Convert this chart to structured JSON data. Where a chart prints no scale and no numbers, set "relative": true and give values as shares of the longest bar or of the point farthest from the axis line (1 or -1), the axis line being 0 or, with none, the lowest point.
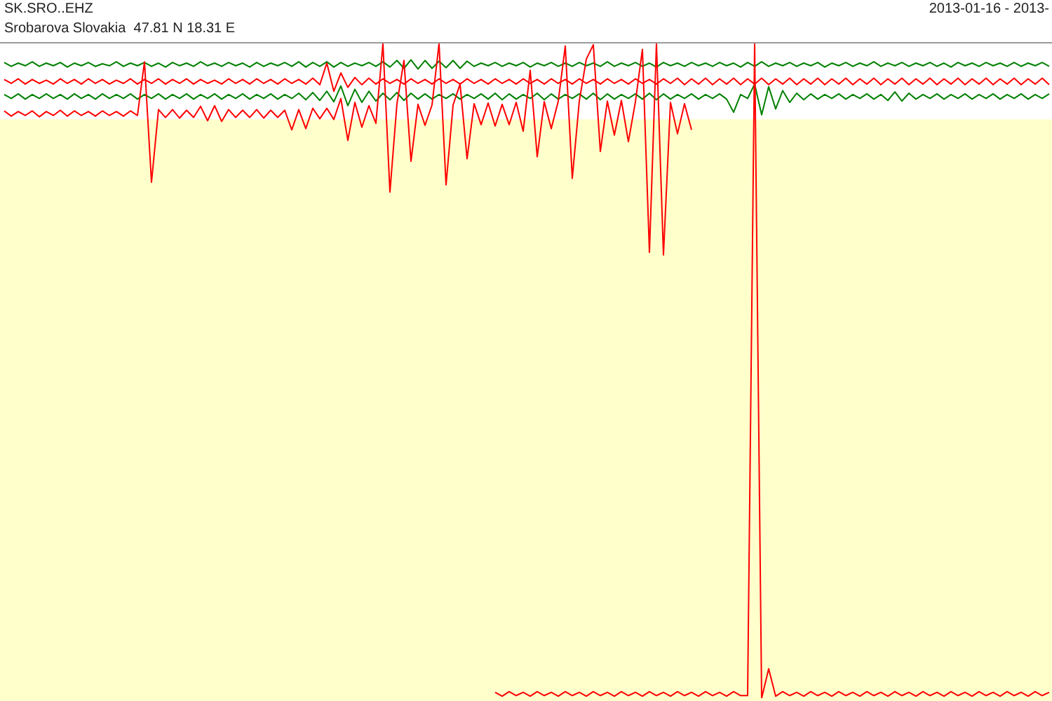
{
  "chart_data": {
    "type": "line",
    "title": "SK.SRO..EHZ",
    "subtitle": "Srobarova Slovakia  47.81 N 18.31 E",
    "annotations": [
      "2013-01-16 - 2013-"
    ],
    "relative": true,
    "legend": false,
    "grid": false,
    "tick_labels": false,
    "marker": "none",
    "line_style": "solid",
    "categories": [
      null,
      null,
      null,
      null,
      null,
      null,
      null,
      null,
      null,
      null,
      null,
      null,
      null,
      null,
      null,
      null,
      null,
      null,
      null,
      null,
      null,
      null,
      null,
      null,
      null,
      null,
      null,
      null,
      null,
      null,
      null,
      null,
      null,
      null,
      null,
      null,
      null,
      null,
      null,
      null,
      null,
      null,
      null,
      null,
      null,
      null,
      null,
      null,
      null,
      null,
      null,
      null,
      null,
      null,
      null,
      null,
      null,
      null,
      null,
      null,
      null,
      null,
      null,
      null,
      null,
      null,
      null,
      null,
      null,
      null,
      null,
      null,
      null,
      null,
      null,
      null,
      null,
      null,
      null,
      null,
      null,
      null,
      null,
      null,
      null,
      null,
      null,
      null,
      null,
      null,
      null,
      null,
      null,
      null,
      null,
      null,
      null,
      null,
      null,
      null,
      null,
      null,
      null,
      null,
      null,
      null,
      null,
      null,
      null,
      null,
      null,
      null,
      null,
      null,
      null,
      null,
      null,
      null,
      null,
      null,
      null,
      null,
      null,
      null,
      null,
      null,
      null,
      null,
      null,
      null,
      null,
      null,
      null,
      null,
      null,
      null,
      null,
      null,
      null,
      null,
      null,
      null,
      null,
      null,
      null,
      null,
      null,
      null,
      null,
      null
    ],
    "series": [
      {
        "color": "#008000",
        "values": [
          0.971,
          0.965,
          0.97,
          0.966,
          0.972,
          0.965,
          0.97,
          0.966,
          0.971,
          0.964,
          0.97,
          0.966,
          0.971,
          0.965,
          0.969,
          0.966,
          0.972,
          0.965,
          0.97,
          0.966,
          0.971,
          0.965,
          0.97,
          0.964,
          0.971,
          0.966,
          0.97,
          0.965,
          0.972,
          0.966,
          0.97,
          0.965,
          0.971,
          0.966,
          0.97,
          0.964,
          0.971,
          0.965,
          0.97,
          0.966,
          0.971,
          0.965,
          0.972,
          0.964,
          0.971,
          0.965,
          0.972,
          0.964,
          0.971,
          0.965,
          0.97,
          0.966,
          0.971,
          0.965,
          0.972,
          0.964,
          0.974,
          0.962,
          0.975,
          0.961,
          0.974,
          0.962,
          0.973,
          0.963,
          0.974,
          0.962,
          0.973,
          0.965,
          0.97,
          0.966,
          0.971,
          0.965,
          0.97,
          0.966,
          0.971,
          0.964,
          0.97,
          0.966,
          0.971,
          0.965,
          0.97,
          0.965,
          0.971,
          0.966,
          0.97,
          0.965,
          0.972,
          0.965,
          0.97,
          0.966,
          0.971,
          0.965,
          0.97,
          0.964,
          0.971,
          0.966,
          0.97,
          0.965,
          0.971,
          0.966,
          0.97,
          0.965,
          0.971,
          0.966,
          0.97,
          0.964,
          0.971,
          0.965,
          0.972,
          0.965,
          0.97,
          0.966,
          0.971,
          0.965,
          0.97,
          0.966,
          0.971,
          0.964,
          0.97,
          0.966,
          0.971,
          0.965,
          0.97,
          0.966,
          0.972,
          0.965,
          0.97,
          0.966,
          0.971,
          0.965,
          0.97,
          0.966,
          0.971,
          0.965,
          0.97,
          0.964,
          0.971,
          0.966,
          0.97,
          0.965,
          0.971,
          0.966,
          0.97,
          0.965,
          0.971,
          0.965,
          0.97,
          0.966,
          0.971,
          0.965
        ]
      },
      {
        "color": "#ff0000",
        "values": [
          0.945,
          0.939,
          0.946,
          0.938,
          0.945,
          0.939,
          0.944,
          0.938,
          0.946,
          0.939,
          0.945,
          0.938,
          0.946,
          0.939,
          0.945,
          0.938,
          0.944,
          0.939,
          0.946,
          0.938,
          0.945,
          0.939,
          0.946,
          0.938,
          0.945,
          0.939,
          0.946,
          0.938,
          0.945,
          0.939,
          0.944,
          0.938,
          0.946,
          0.939,
          0.945,
          0.938,
          0.946,
          0.939,
          0.945,
          0.938,
          0.946,
          0.939,
          0.945,
          0.938,
          0.947,
          0.937,
          0.97,
          0.927,
          0.955,
          0.933,
          0.948,
          0.937,
          0.947,
          0.938,
          0.946,
          0.939,
          0.945,
          0.938,
          0.946,
          0.939,
          0.945,
          0.938,
          0.946,
          0.939,
          0.945,
          0.938,
          0.946,
          0.939,
          0.945,
          0.938,
          0.946,
          0.939,
          0.945,
          0.938,
          0.946,
          0.939,
          0.945,
          0.938,
          0.946,
          0.939,
          0.945,
          0.938,
          0.946,
          0.939,
          0.945,
          0.938,
          0.946,
          0.939,
          0.945,
          0.938,
          0.946,
          0.939,
          0.945,
          0.938,
          0.946,
          0.939,
          0.947,
          0.937,
          0.946,
          0.938,
          0.947,
          0.937,
          0.946,
          0.938,
          0.947,
          0.937,
          0.946,
          0.938,
          0.947,
          0.937,
          0.946,
          0.938,
          0.947,
          0.937,
          0.946,
          0.938,
          0.947,
          0.937,
          0.946,
          0.938,
          0.947,
          0.937,
          0.946,
          0.938,
          0.947,
          0.937,
          0.946,
          0.938,
          0.947,
          0.937,
          0.946,
          0.938,
          0.947,
          0.937,
          0.946,
          0.938,
          0.947,
          0.937,
          0.946,
          0.938,
          0.947,
          0.937,
          0.946,
          0.938,
          0.947,
          0.937,
          0.946,
          0.938,
          0.947,
          0.937
        ]
      },
      {
        "color": "#008000",
        "values": [
          0.922,
          0.916,
          0.923,
          0.915,
          0.922,
          0.916,
          0.923,
          0.916,
          0.922,
          0.915,
          0.923,
          0.916,
          0.922,
          0.915,
          0.923,
          0.916,
          0.922,
          0.916,
          0.923,
          0.915,
          0.922,
          0.916,
          0.923,
          0.915,
          0.922,
          0.916,
          0.923,
          0.915,
          0.922,
          0.916,
          0.923,
          0.915,
          0.922,
          0.916,
          0.923,
          0.915,
          0.922,
          0.916,
          0.923,
          0.915,
          0.922,
          0.916,
          0.924,
          0.914,
          0.925,
          0.913,
          0.927,
          0.911,
          0.935,
          0.905,
          0.93,
          0.91,
          0.927,
          0.912,
          0.924,
          0.914,
          0.925,
          0.913,
          0.924,
          0.915,
          0.923,
          0.915,
          0.922,
          0.916,
          0.923,
          0.915,
          0.922,
          0.916,
          0.923,
          0.915,
          0.924,
          0.914,
          0.923,
          0.915,
          0.922,
          0.916,
          0.924,
          0.914,
          0.923,
          0.915,
          0.922,
          0.916,
          0.923,
          0.915,
          0.924,
          0.914,
          0.923,
          0.915,
          0.922,
          0.916,
          0.923,
          0.915,
          0.924,
          0.914,
          0.923,
          0.915,
          0.922,
          0.916,
          0.923,
          0.915,
          0.922,
          0.916,
          0.923,
          0.915,
          0.895,
          0.922,
          0.916,
          0.938,
          0.891,
          0.934,
          0.9,
          0.928,
          0.91,
          0.924,
          0.914,
          0.923,
          0.915,
          0.922,
          0.916,
          0.923,
          0.915,
          0.922,
          0.916,
          0.923,
          0.915,
          0.922,
          0.913,
          0.926,
          0.912,
          0.924,
          0.915,
          0.922,
          0.916,
          0.923,
          0.915,
          0.922,
          0.916,
          0.923,
          0.915,
          0.922,
          0.916,
          0.923,
          0.915,
          0.922,
          0.916,
          0.923,
          0.915,
          0.922,
          0.916,
          0.923
        ]
      },
      {
        "color": "#ff0000",
        "values": [
          0.897,
          0.889,
          0.896,
          0.89,
          0.897,
          0.888,
          0.896,
          0.89,
          0.898,
          0.889,
          0.897,
          0.89,
          0.896,
          0.889,
          0.897,
          0.89,
          0.896,
          0.889,
          0.897,
          0.89,
          0.972,
          0.788,
          0.899,
          0.887,
          0.899,
          0.886,
          0.898,
          0.887,
          0.904,
          0.882,
          0.905,
          0.881,
          0.899,
          0.887,
          0.898,
          0.887,
          0.899,
          0.886,
          0.898,
          0.887,
          0.898,
          0.868,
          0.899,
          0.87,
          0.901,
          0.885,
          0.901,
          0.884,
          0.916,
          0.852,
          0.91,
          0.872,
          0.905,
          0.878,
          1,
          0.773,
          0.908,
          0.974,
          0.82,
          0.907,
          0.875,
          0.906,
          1,
          0.784,
          0.906,
          0.938,
          0.824,
          0.908,
          0.876,
          0.909,
          0.874,
          0.907,
          0.876,
          0.91,
          0.866,
          0.959,
          0.827,
          0.911,
          0.87,
          0.912,
          0.996,
          0.794,
          0.912,
          0.976,
          0.998,
          0.835,
          0.912,
          0.86,
          0.913,
          0.85,
          0.911,
          0.991,
          0.681,
          1,
          0.677,
          0.91,
          0.862,
          0.908,
          0.868,
          null,
          null,
          null,
          null,
          null,
          null,
          null,
          null,
          null,
          null,
          null,
          null,
          null,
          null,
          null,
          null,
          null,
          null,
          null,
          null,
          null,
          null,
          null,
          null,
          null,
          null,
          null,
          null,
          null,
          null,
          null,
          null,
          null,
          null,
          null,
          null,
          null,
          null,
          null,
          null,
          null,
          null,
          null,
          null,
          null,
          null,
          null,
          null,
          null,
          null,
          null
        ]
      },
      {
        "color": "#ff0000",
        "values": [
          null,
          null,
          null,
          null,
          null,
          null,
          null,
          null,
          null,
          null,
          null,
          null,
          null,
          null,
          null,
          null,
          null,
          null,
          null,
          null,
          null,
          null,
          null,
          null,
          null,
          null,
          null,
          null,
          null,
          null,
          null,
          null,
          null,
          null,
          null,
          null,
          null,
          null,
          null,
          null,
          null,
          null,
          null,
          null,
          null,
          null,
          null,
          null,
          null,
          null,
          null,
          null,
          null,
          null,
          null,
          null,
          null,
          null,
          null,
          null,
          null,
          null,
          null,
          null,
          null,
          null,
          null,
          null,
          null,
          null,
          0.009,
          0.003,
          0.01,
          0.004,
          0.009,
          0.003,
          0.01,
          0.004,
          0.009,
          0.003,
          0.01,
          0.004,
          0.009,
          0.003,
          0.01,
          0.004,
          0.009,
          0.003,
          0.01,
          0.004,
          0.009,
          0.003,
          0.01,
          0.004,
          0.009,
          0.003,
          0.01,
          0.004,
          0.009,
          0.003,
          0.01,
          0.004,
          0.009,
          0.003,
          0.01,
          0.004,
          0.004,
          1,
          0,
          0.045,
          0.003,
          0.01,
          0.004,
          0.009,
          0.003,
          0.01,
          0.004,
          0.009,
          0.003,
          0.01,
          0.004,
          0.009,
          0.003,
          0.01,
          0.004,
          0.009,
          0.003,
          0.01,
          0.004,
          0.009,
          0.003,
          0.01,
          0.004,
          0.009,
          0.003,
          0.01,
          0.004,
          0.009,
          0.003,
          0.01,
          0.004,
          0.009,
          0.003,
          0.01,
          0.004,
          0.009,
          0.003,
          0.01,
          0.004,
          0.009
        ]
      }
    ],
    "bands": [
      {
        "axis": "y",
        "from": 0,
        "to": 0.884,
        "color": "#ffffcc"
      }
    ]
  }
}
